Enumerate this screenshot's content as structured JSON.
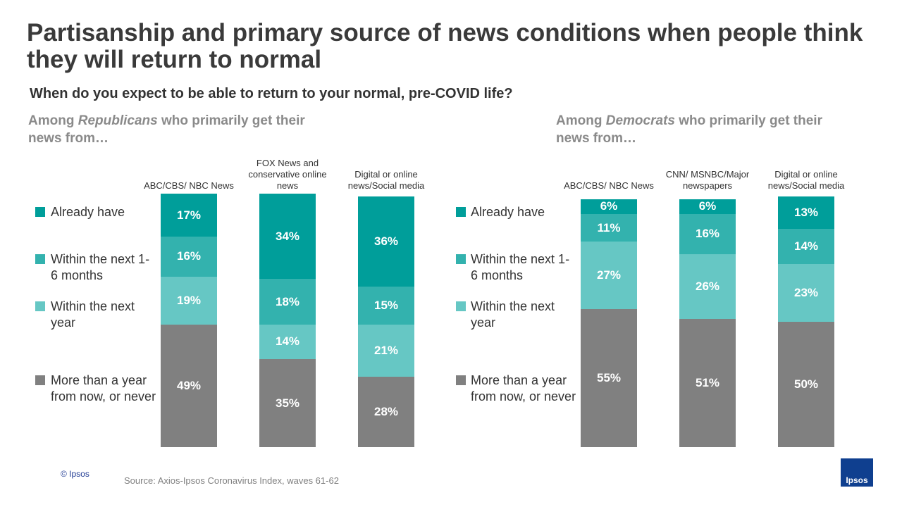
{
  "title": "Partisanship and primary source of news conditions when people think they will return to normal",
  "question": "When do you expect to be able to return to your normal, pre-COVID life?",
  "copyright": "© Ipsos",
  "source": "Source: Axios-Ipsos Coronavirus Index, waves 61-62",
  "logo": "Ipsos",
  "chart_data": [
    {
      "type": "stacked_bar",
      "title": [
        "Among ",
        "Republicans",
        " who primarily get their news from…"
      ],
      "categories": [
        "ABC/CBS/ NBC News",
        "FOX News and conservative online news",
        "Digital or online news/Social media"
      ],
      "ylim": [
        0,
        100
      ],
      "series": [
        {
          "name": "More than a year from now, or never",
          "color": "#808080",
          "values": [
            49,
            35,
            28
          ],
          "value_labels": [
            "49%",
            "35%",
            "28%"
          ]
        },
        {
          "name": "Within the next year",
          "color": "#66c7c4",
          "values": [
            19,
            14,
            21
          ],
          "value_labels": [
            "19%",
            "14%",
            "21%"
          ]
        },
        {
          "name": "Within the next 1-6 months",
          "color": "#33b2ae",
          "values": [
            16,
            18,
            15
          ],
          "value_labels": [
            "16%",
            "18%",
            "15%"
          ]
        },
        {
          "name": "Already have",
          "color": "#009e9a",
          "values": [
            17,
            34,
            36
          ],
          "value_labels": [
            "17%",
            "34%",
            "36%"
          ]
        }
      ]
    },
    {
      "type": "stacked_bar",
      "title": [
        "Among ",
        "Democrats",
        " who primarily get their news from…"
      ],
      "categories": [
        "ABC/CBS/ NBC News",
        "CNN/ MSNBC/Major newspapers",
        "Digital or online news/Social media"
      ],
      "ylim": [
        0,
        100
      ],
      "series": [
        {
          "name": "More than a year from now, or never",
          "color": "#808080",
          "values": [
            55,
            51,
            50
          ],
          "value_labels": [
            "55%",
            "51%",
            "50%"
          ]
        },
        {
          "name": "Within the next year",
          "color": "#66c7c4",
          "values": [
            27,
            26,
            23
          ],
          "value_labels": [
            "27%",
            "26%",
            "23%"
          ]
        },
        {
          "name": "Within the next 1-6 months",
          "color": "#33b2ae",
          "values": [
            11,
            16,
            14
          ],
          "value_labels": [
            "11%",
            "16%",
            "14%"
          ]
        },
        {
          "name": "Already have",
          "color": "#009e9a",
          "values": [
            6,
            6,
            13
          ],
          "value_labels": [
            "6%",
            "6%",
            "13%"
          ]
        }
      ]
    }
  ]
}
